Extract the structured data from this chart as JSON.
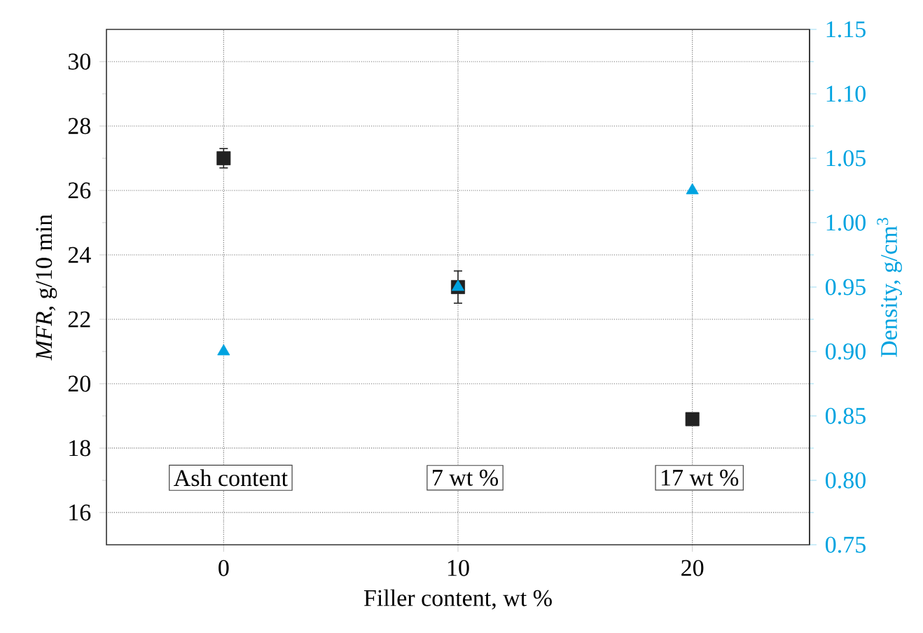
{
  "chart_data": {
    "type": "scatter",
    "xlabel": "Filler content, wt %",
    "ylabel": "*MFR*, g/10 min",
    "y2label": "Density, g/cm$^{3}$",
    "xlim": [
      -5,
      25
    ],
    "xticks": [
      0,
      10,
      20
    ],
    "ylim": [
      15,
      31
    ],
    "yticks": [
      16,
      18,
      20,
      22,
      24,
      26,
      28,
      30
    ],
    "y2lim": [
      0.75,
      1.15
    ],
    "y2ticks": [
      {
        "value": 0.75,
        "label": "0.75"
      },
      {
        "value": 0.8,
        "label": "0.80"
      },
      {
        "value": 0.85,
        "label": "0.85"
      },
      {
        "value": 0.9,
        "label": "0.90"
      },
      {
        "value": 0.95,
        "label": "0.95"
      },
      {
        "value": 1.0,
        "label": "1.00"
      },
      {
        "value": 1.05,
        "label": "1.05"
      },
      {
        "value": 1.1,
        "label": "1.10"
      },
      {
        "value": 1.15,
        "label": "1.15"
      }
    ],
    "grid": true,
    "series": [
      {
        "color": "#222222",
        "marker": "square",
        "x": [
          0,
          10,
          20
        ],
        "values": [
          27,
          23,
          18.9
        ],
        "errors": [
          0.3,
          0.5,
          null
        ]
      },
      {
        "color": "#00a3e0",
        "marker": "triangle",
        "axis": "y2",
        "x": [
          0,
          10,
          20
        ],
        "values": [
          0.9,
          0.95,
          1.025
        ]
      }
    ],
    "annotations": [
      "Ash content",
      "7 wt %",
      "17 wt %"
    ]
  }
}
